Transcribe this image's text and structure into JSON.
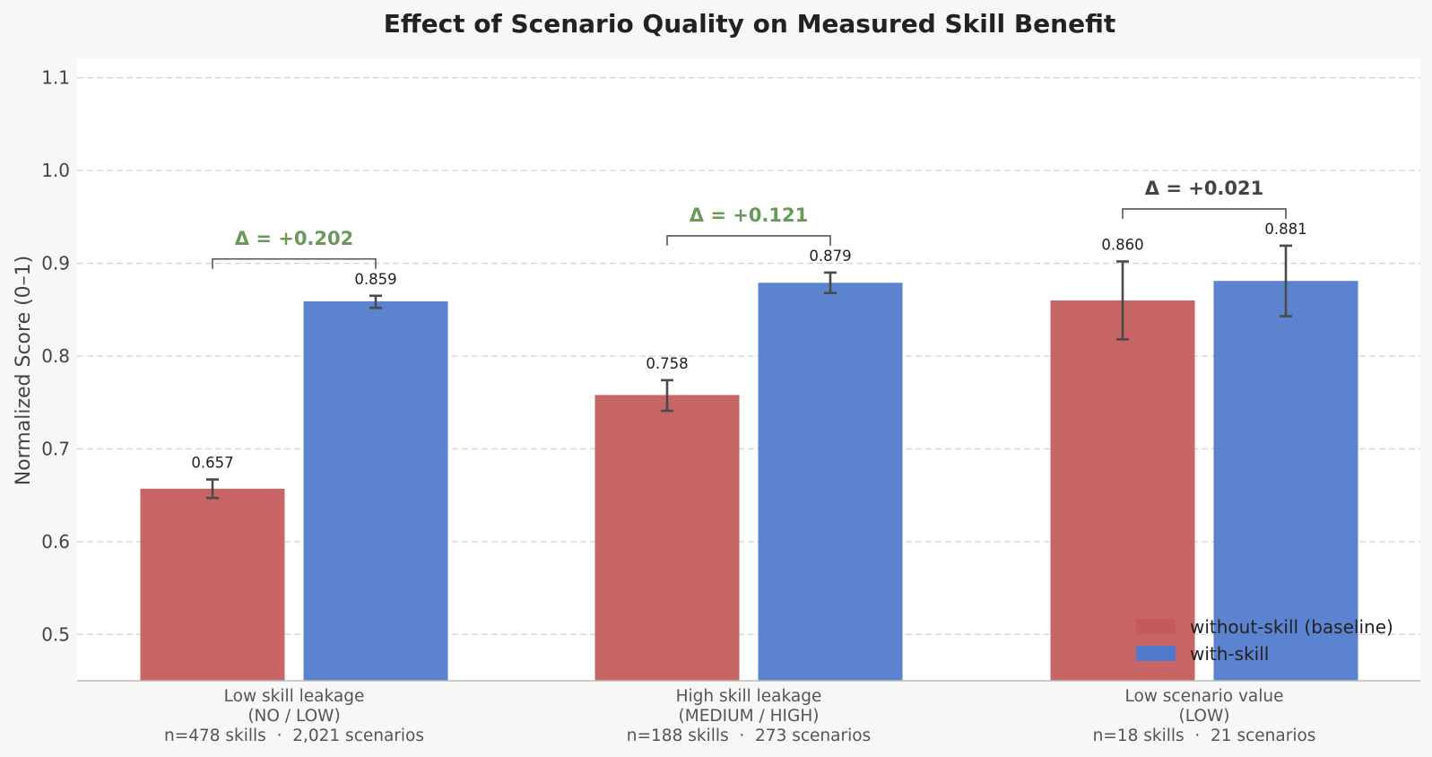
{
  "chart_data": {
    "type": "bar",
    "title": "Effect of Scenario Quality on Measured Skill Benefit",
    "xlabel": "",
    "ylabel": "Normalized Score (0–1)",
    "ylim": [
      0.45,
      1.12
    ],
    "yticks": [
      0.5,
      0.6,
      0.7,
      0.8,
      0.9,
      1.0,
      1.1
    ],
    "ytick_labels": [
      "0.5",
      "0.6",
      "0.7",
      "0.8",
      "0.9",
      "1.0",
      "1.1"
    ],
    "grid": true,
    "legend_position": "bottom-right",
    "categories": [
      [
        "Low skill leakage",
        "(NO / LOW)",
        "n=478 skills  ·  2,021 scenarios"
      ],
      [
        "High skill leakage",
        "(MEDIUM / HIGH)",
        "n=188 skills  ·  273 scenarios"
      ],
      [
        "Low scenario value",
        "(LOW)",
        "n=18 skills  ·  21 scenarios"
      ]
    ],
    "series": [
      {
        "name": "without-skill (baseline)",
        "color": "#c45a5a",
        "values": [
          0.657,
          0.758,
          0.86
        ],
        "labels": [
          "0.657",
          "0.758",
          "0.860"
        ],
        "err_low": [
          0.647,
          0.741,
          0.818
        ],
        "err_high": [
          0.667,
          0.774,
          0.902
        ]
      },
      {
        "name": "with-skill",
        "color": "#4f7acb",
        "values": [
          0.859,
          0.879,
          0.881
        ],
        "labels": [
          "0.859",
          "0.879",
          "0.881"
        ],
        "err_low": [
          0.852,
          0.868,
          0.843
        ],
        "err_high": [
          0.865,
          0.89,
          0.919
        ]
      }
    ],
    "deltas": [
      {
        "label": "Δ = +0.202",
        "color": "#6a9a5a"
      },
      {
        "label": "Δ = +0.121",
        "color": "#6a9a5a"
      },
      {
        "label": "Δ = +0.021",
        "color": "#444444"
      }
    ]
  }
}
